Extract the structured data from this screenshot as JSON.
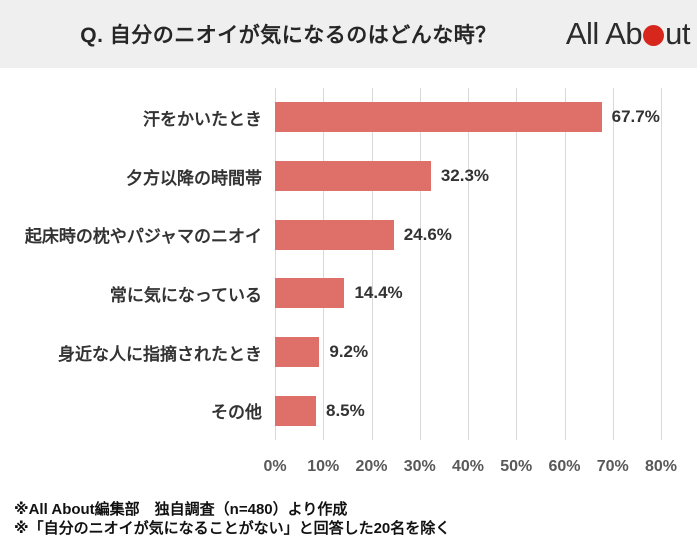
{
  "header": {
    "title": "Q. 自分のニオイが気になるのはどんな時？",
    "logo": {
      "text_before": "All Ab",
      "text_after": "ut",
      "dot_color": "#d7261c"
    }
  },
  "chart_data": {
    "type": "bar",
    "orientation": "horizontal",
    "categories": [
      "汗をかいたとき",
      "夕方以降の時間帯",
      "起床時の枕やパジャマのニオイ",
      "常に気になっている",
      "身近な人に指摘されたとき",
      "その他"
    ],
    "values": [
      67.7,
      32.3,
      24.6,
      14.4,
      9.2,
      8.5
    ],
    "value_labels": [
      "67.7%",
      "32.3%",
      "24.6%",
      "14.4%",
      "9.2%",
      "8.5%"
    ],
    "xlim": [
      0,
      80
    ],
    "x_ticks": [
      "0%",
      "10%",
      "20%",
      "30%",
      "40%",
      "50%",
      "60%",
      "70%",
      "80%"
    ],
    "bar_color": "#de7069",
    "grid": true,
    "legend": "none"
  },
  "footer": {
    "notes": [
      "※All About編集部　独自調査（n=480）より作成",
      "※「自分のニオイが気になることがない」と回答した20名を除く"
    ]
  }
}
